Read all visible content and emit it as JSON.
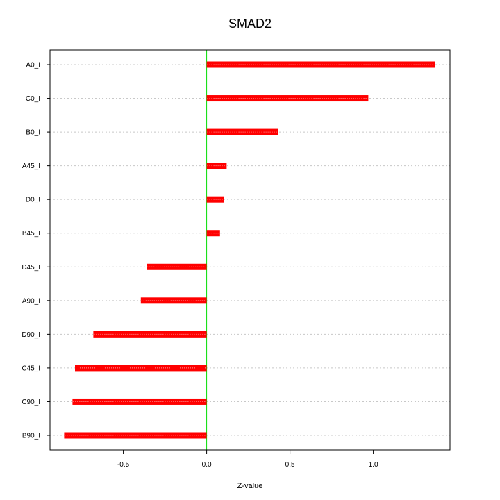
{
  "chart_data": {
    "type": "bar",
    "orientation": "horizontal",
    "title": "SMAD2",
    "xlabel": "Z-value",
    "ylabel": "",
    "categories": [
      "A0_I",
      "C0_I",
      "B0_I",
      "A45_I",
      "D0_I",
      "B45_I",
      "D45_I",
      "A90_I",
      "D90_I",
      "C45_I",
      "C90_I",
      "B90_I"
    ],
    "values": [
      1.37,
      0.97,
      0.43,
      0.12,
      0.105,
      0.08,
      -0.36,
      -0.395,
      -0.68,
      -0.79,
      -0.805,
      -0.855
    ],
    "xlim": [
      -0.94,
      1.46
    ],
    "xticks": [
      -0.5,
      0.0,
      0.5,
      1.0
    ],
    "xtick_labels": [
      "-0.5",
      "0.0",
      "0.5",
      "1.0"
    ],
    "reference_line": 0,
    "grid": "horizontal-dotted",
    "colors": {
      "bar": "#ff0000",
      "bar_highlight": "#ff9999",
      "zero_line": "#00dd00",
      "grid": "#c8c8c8",
      "frame": "#000000"
    }
  }
}
